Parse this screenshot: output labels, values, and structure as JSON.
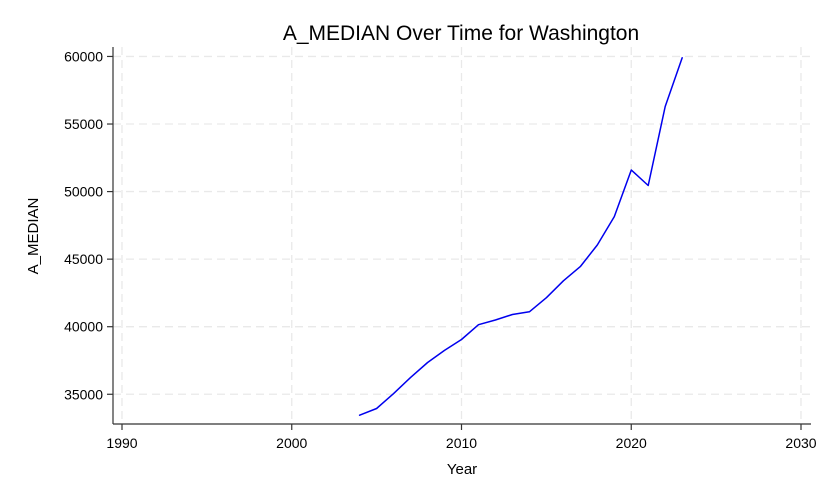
{
  "chart_data": {
    "type": "line",
    "title": "A_MEDIAN Over Time for Washington",
    "xlabel": "Year",
    "ylabel": "A_MEDIAN",
    "xlim": [
      1990,
      2030
    ],
    "ylim": [
      32800,
      60700
    ],
    "x_ticks": [
      1990,
      2000,
      2010,
      2020,
      2030
    ],
    "y_ticks": [
      35000,
      40000,
      45000,
      50000,
      55000,
      60000
    ],
    "grid": true,
    "legend": "none",
    "series": [
      {
        "color": "#0000ee",
        "x": [
          2004,
          2005,
          2006,
          2007,
          2008,
          2009,
          2010,
          2011,
          2012,
          2013,
          2014,
          2015,
          2016,
          2017,
          2018,
          2019,
          2020,
          2021,
          2022,
          2023
        ],
        "y": [
          33450,
          33950,
          35050,
          36250,
          37350,
          38250,
          39050,
          40150,
          40500,
          40900,
          41100,
          42150,
          43400,
          44450,
          46050,
          48150,
          51600,
          50450,
          56300,
          59900
        ]
      }
    ]
  }
}
